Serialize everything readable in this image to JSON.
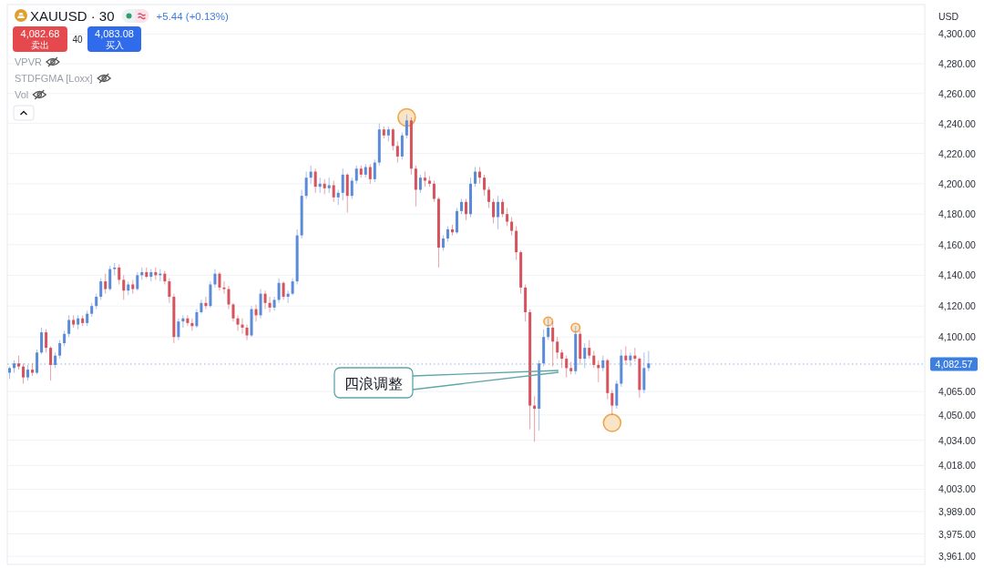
{
  "chart_data": {
    "type": "candlestick",
    "title": "XAUUSD · 30",
    "ylabel": "USD",
    "log": true,
    "grid": "y",
    "categories": [
      null,
      null,
      null,
      null,
      null,
      null,
      null,
      null,
      null,
      null,
      null,
      null,
      null,
      null,
      null,
      null,
      null,
      null,
      null,
      null,
      null,
      null,
      null,
      null,
      null,
      null,
      null,
      null,
      null,
      null,
      null,
      null,
      null,
      null,
      null,
      null,
      null,
      null,
      null,
      null,
      null,
      null,
      null,
      null,
      null,
      null,
      null,
      null,
      null,
      null,
      null,
      null,
      null,
      null,
      null,
      null,
      null,
      null,
      null,
      null,
      null,
      null,
      null,
      null,
      null,
      null,
      null,
      null,
      null,
      null,
      null,
      null,
      null,
      null,
      null,
      null,
      null,
      null,
      null,
      null,
      null,
      null,
      null,
      null,
      null,
      null,
      null,
      null,
      null,
      null,
      null,
      null,
      null,
      null,
      null,
      null,
      null,
      null,
      null,
      null,
      null,
      null,
      null,
      null,
      null,
      null,
      null,
      null,
      null,
      null,
      null,
      null,
      null,
      null,
      null,
      null,
      null,
      null,
      null,
      null,
      null,
      null,
      null,
      null,
      null,
      null,
      null,
      null,
      null,
      null,
      null,
      null,
      null,
      null,
      null,
      null,
      null,
      null,
      null,
      null,
      null,
      null,
      null,
      null,
      null,
      null,
      null,
      null,
      null,
      null,
      null,
      null,
      null,
      null,
      null,
      null,
      null,
      null,
      null,
      null,
      null,
      null,
      null,
      null,
      null,
      null,
      null,
      null,
      null,
      null,
      null,
      null,
      null,
      null,
      null,
      null,
      null,
      null,
      null,
      null,
      null,
      null,
      null,
      null,
      null,
      null,
      null,
      null,
      null,
      null,
      null,
      null,
      null,
      null,
      null,
      null,
      null,
      null,
      null,
      null,
      null
    ],
    "ohlc": [
      [
        4077,
        4081,
        4073,
        4080
      ],
      [
        4080,
        4085,
        4077,
        4083
      ],
      [
        4083,
        4088,
        4079,
        4081
      ],
      [
        4081,
        4083,
        4070,
        4074
      ],
      [
        4074,
        4082,
        4072,
        4079
      ],
      [
        4079,
        4083,
        4075,
        4077
      ],
      [
        4077,
        4092,
        4076,
        4090
      ],
      [
        4090,
        4106,
        4089,
        4103
      ],
      [
        4103,
        4105,
        4090,
        4093
      ],
      [
        4093,
        4094,
        4072,
        4082
      ],
      [
        4082,
        4090,
        4080,
        4088
      ],
      [
        4088,
        4098,
        4086,
        4096
      ],
      [
        4096,
        4104,
        4094,
        4102
      ],
      [
        4102,
        4114,
        4100,
        4111
      ],
      [
        4111,
        4114,
        4106,
        4108
      ],
      [
        4108,
        4114,
        4105,
        4112
      ],
      [
        4112,
        4114,
        4107,
        4109
      ],
      [
        4109,
        4117,
        4107,
        4115
      ],
      [
        4115,
        4122,
        4113,
        4120
      ],
      [
        4120,
        4128,
        4118,
        4126
      ],
      [
        4126,
        4138,
        4124,
        4136
      ],
      [
        4136,
        4141,
        4128,
        4131
      ],
      [
        4131,
        4146,
        4130,
        4144
      ],
      [
        4144,
        4148,
        4140,
        4145
      ],
      [
        4145,
        4147,
        4134,
        4137
      ],
      [
        4137,
        4140,
        4124,
        4130
      ],
      [
        4130,
        4136,
        4127,
        4134
      ],
      [
        4134,
        4137,
        4128,
        4131
      ],
      [
        4131,
        4142,
        4130,
        4140
      ],
      [
        4140,
        4145,
        4137,
        4142
      ],
      [
        4142,
        4145,
        4138,
        4139
      ],
      [
        4139,
        4144,
        4136,
        4142
      ],
      [
        4142,
        4145,
        4137,
        4140
      ],
      [
        4140,
        4144,
        4136,
        4141
      ],
      [
        4141,
        4143,
        4134,
        4136
      ],
      [
        4136,
        4138,
        4122,
        4126
      ],
      [
        4126,
        4128,
        4096,
        4100
      ],
      [
        4100,
        4112,
        4098,
        4110
      ],
      [
        4110,
        4114,
        4106,
        4112
      ],
      [
        4112,
        4114,
        4107,
        4109
      ],
      [
        4109,
        4112,
        4104,
        4107
      ],
      [
        4107,
        4118,
        4106,
        4116
      ],
      [
        4116,
        4124,
        4115,
        4122
      ],
      [
        4122,
        4126,
        4118,
        4120
      ],
      [
        4120,
        4136,
        4119,
        4134
      ],
      [
        4134,
        4144,
        4132,
        4141
      ],
      [
        4141,
        4142,
        4130,
        4132
      ],
      [
        4132,
        4136,
        4128,
        4131
      ],
      [
        4131,
        4133,
        4118,
        4121
      ],
      [
        4121,
        4122,
        4110,
        4112
      ],
      [
        4112,
        4114,
        4104,
        4108
      ],
      [
        4108,
        4112,
        4102,
        4106
      ],
      [
        4106,
        4108,
        4098,
        4101
      ],
      [
        4101,
        4120,
        4100,
        4118
      ],
      [
        4118,
        4121,
        4110,
        4114
      ],
      [
        4114,
        4131,
        4112,
        4128
      ],
      [
        4128,
        4130,
        4118,
        4122
      ],
      [
        4122,
        4126,
        4116,
        4119
      ],
      [
        4119,
        4126,
        4117,
        4124
      ],
      [
        4124,
        4138,
        4122,
        4135
      ],
      [
        4135,
        4136,
        4124,
        4126
      ],
      [
        4126,
        4130,
        4122,
        4128
      ],
      [
        4128,
        4138,
        4127,
        4136
      ],
      [
        4136,
        4170,
        4134,
        4166
      ],
      [
        4166,
        4196,
        4164,
        4192
      ],
      [
        4192,
        4208,
        4190,
        4204
      ],
      [
        4204,
        4212,
        4200,
        4208
      ],
      [
        4208,
        4210,
        4194,
        4198
      ],
      [
        4198,
        4204,
        4194,
        4200
      ],
      [
        4200,
        4203,
        4193,
        4197
      ],
      [
        4197,
        4204,
        4194,
        4199
      ],
      [
        4199,
        4202,
        4188,
        4191
      ],
      [
        4191,
        4196,
        4186,
        4194
      ],
      [
        4194,
        4210,
        4189,
        4206
      ],
      [
        4206,
        4207,
        4181,
        4192
      ],
      [
        4192,
        4204,
        4190,
        4202
      ],
      [
        4202,
        4212,
        4200,
        4210
      ],
      [
        4210,
        4212,
        4204,
        4206
      ],
      [
        4206,
        4213,
        4204,
        4211
      ],
      [
        4211,
        4213,
        4200,
        4203
      ],
      [
        4203,
        4216,
        4201,
        4214
      ],
      [
        4214,
        4240,
        4212,
        4236
      ],
      [
        4236,
        4238,
        4230,
        4232
      ],
      [
        4232,
        4238,
        4228,
        4236
      ],
      [
        4236,
        4237,
        4222,
        4225
      ],
      [
        4225,
        4228,
        4214,
        4218
      ],
      [
        4218,
        4234,
        4216,
        4232
      ],
      [
        4232,
        4246,
        4230,
        4242
      ],
      [
        4242,
        4244,
        4206,
        4210
      ],
      [
        4210,
        4212,
        4185,
        4196
      ],
      [
        4196,
        4206,
        4194,
        4204
      ],
      [
        4204,
        4208,
        4198,
        4202
      ],
      [
        4202,
        4205,
        4198,
        4200
      ],
      [
        4200,
        4202,
        4188,
        4190
      ],
      [
        4190,
        4191,
        4145,
        4158
      ],
      [
        4158,
        4166,
        4156,
        4164
      ],
      [
        4164,
        4172,
        4162,
        4170
      ],
      [
        4170,
        4173,
        4166,
        4168
      ],
      [
        4168,
        4184,
        4167,
        4182
      ],
      [
        4182,
        4190,
        4180,
        4188
      ],
      [
        4188,
        4190,
        4176,
        4180
      ],
      [
        4180,
        4204,
        4178,
        4200
      ],
      [
        4200,
        4211,
        4198,
        4208
      ],
      [
        4208,
        4211,
        4200,
        4204
      ],
      [
        4204,
        4206,
        4192,
        4196
      ],
      [
        4196,
        4198,
        4184,
        4188
      ],
      [
        4188,
        4190,
        4174,
        4178
      ],
      [
        4178,
        4192,
        4170,
        4188
      ],
      [
        4188,
        4190,
        4178,
        4180
      ],
      [
        4180,
        4184,
        4172,
        4175
      ],
      [
        4175,
        4178,
        4166,
        4169
      ],
      [
        4169,
        4172,
        4150,
        4155
      ],
      [
        4155,
        4156,
        4128,
        4132
      ],
      [
        4132,
        4134,
        4110,
        4116
      ],
      [
        4116,
        4118,
        4041,
        4056
      ],
      [
        4056,
        4062,
        4033,
        4054
      ],
      [
        4054,
        4085,
        4040,
        4083
      ],
      [
        4083,
        4105,
        4081,
        4100
      ],
      [
        4100,
        4112,
        4098,
        4106
      ],
      [
        4106,
        4110,
        4081,
        4097
      ],
      [
        4097,
        4100,
        4086,
        4090
      ],
      [
        4090,
        4092,
        4080,
        4086
      ],
      [
        4086,
        4088,
        4074,
        4080
      ],
      [
        4080,
        4084,
        4076,
        4078
      ],
      [
        4078,
        4107,
        4076,
        4102
      ],
      [
        4102,
        4104,
        4082,
        4086
      ],
      [
        4086,
        4096,
        4080,
        4093
      ],
      [
        4093,
        4098,
        4086,
        4088
      ],
      [
        4088,
        4091,
        4080,
        4082
      ],
      [
        4082,
        4085,
        4071,
        4080
      ],
      [
        4080,
        4088,
        4078,
        4085
      ],
      [
        4085,
        4086,
        4060,
        4064
      ],
      [
        4064,
        4066,
        4050,
        4056
      ],
      [
        4056,
        4072,
        4054,
        4070
      ],
      [
        4070,
        4092,
        4068,
        4088
      ],
      [
        4088,
        4094,
        4082,
        4085
      ],
      [
        4085,
        4090,
        4081,
        4088
      ],
      [
        4088,
        4093,
        4084,
        4086
      ],
      [
        4086,
        4087,
        4061,
        4066
      ],
      [
        4066,
        4090,
        4064,
        4080
      ],
      [
        4080,
        4091,
        4078,
        4083
      ],
      null,
      null,
      null,
      null,
      null,
      null,
      null,
      null,
      null,
      null,
      null,
      null,
      null,
      null,
      null,
      null,
      null,
      null,
      null,
      null,
      null,
      null,
      null,
      null,
      null,
      null,
      null,
      null,
      null,
      null,
      null,
      null,
      null,
      null,
      null,
      null,
      null,
      null,
      null,
      null,
      null,
      null,
      null,
      null,
      null,
      null,
      null,
      null,
      null,
      null,
      null,
      null,
      null,
      null,
      null,
      null,
      null,
      null,
      null,
      null
    ],
    "colors": [
      "#5b8bd8",
      "#5b8bd8",
      "#d6535d",
      "#d6535d",
      "#5b8bd8",
      "#d6535d",
      "#5b8bd8",
      "#5b8bd8",
      "#d6535d",
      "#d6535d",
      "#5b8bd8",
      "#5b8bd8",
      "#5b8bd8",
      "#5b8bd8",
      "#d6535d",
      "#5b8bd8",
      "#d6535d",
      "#5b8bd8",
      "#5b8bd8",
      "#5b8bd8",
      "#5b8bd8",
      "#d6535d",
      "#5b8bd8",
      "#5b8bd8",
      "#d6535d",
      "#d6535d",
      "#5b8bd8",
      "#d6535d",
      "#5b8bd8",
      "#5b8bd8",
      "#d6535d",
      "#5b8bd8",
      "#d6535d",
      "#5b8bd8",
      "#d6535d",
      "#d6535d",
      "#d6535d",
      "#5b8bd8",
      "#5b8bd8",
      "#d6535d",
      "#d6535d",
      "#5b8bd8",
      "#5b8bd8",
      "#d6535d",
      "#5b8bd8",
      "#5b8bd8",
      "#d6535d",
      "#d6535d",
      "#d6535d",
      "#d6535d",
      "#d6535d",
      "#d6535d",
      "#d6535d",
      "#5b8bd8",
      "#d6535d",
      "#5b8bd8",
      "#d6535d",
      "#d6535d",
      "#5b8bd8",
      "#5b8bd8",
      "#d6535d",
      "#5b8bd8",
      "#5b8bd8",
      "#5b8bd8",
      "#5b8bd8",
      "#5b8bd8",
      "#5b8bd8",
      "#d6535d",
      "#5b8bd8",
      "#d6535d",
      "#5b8bd8",
      "#d6535d",
      "#5b8bd8",
      "#5b8bd8",
      "#d6535d",
      "#5b8bd8",
      "#5b8bd8",
      "#d6535d",
      "#5b8bd8",
      "#d6535d",
      "#5b8bd8",
      "#5b8bd8",
      "#d6535d",
      "#5b8bd8",
      "#d6535d",
      "#d6535d",
      "#5b8bd8",
      "#5b8bd8",
      "#d6535d",
      "#d6535d",
      "#5b8bd8",
      "#d6535d",
      "#d6535d",
      "#d6535d",
      "#d6535d",
      "#5b8bd8",
      "#5b8bd8",
      "#d6535d",
      "#5b8bd8",
      "#5b8bd8",
      "#d6535d",
      "#5b8bd8",
      "#5b8bd8",
      "#d6535d",
      "#d6535d",
      "#d6535d",
      "#d6535d",
      "#5b8bd8",
      "#d6535d",
      "#d6535d",
      "#d6535d",
      "#d6535d",
      "#d6535d",
      "#d6535d",
      "#d6535d",
      "#d6535d",
      "#5b8bd8",
      "#5b8bd8",
      "#5b8bd8",
      "#d6535d",
      "#d6535d",
      "#d6535d",
      "#d6535d",
      "#d6535d",
      "#5b8bd8",
      "#d6535d",
      "#5b8bd8",
      "#d6535d",
      "#d6535d",
      "#d6535d",
      "#5b8bd8",
      "#d6535d",
      "#d6535d",
      "#5b8bd8",
      "#5b8bd8",
      "#d6535d",
      "#5b8bd8",
      "#d6535d",
      "#d6535d",
      "#5b8bd8",
      "#5b8bd8",
      null,
      null,
      null,
      null,
      null,
      null,
      null,
      null,
      null,
      null,
      null,
      null,
      null,
      null,
      null,
      null,
      null,
      null,
      null,
      null,
      null,
      null,
      null,
      null,
      null,
      null,
      null,
      null,
      null,
      null,
      null,
      null,
      null,
      null,
      null,
      null,
      null,
      null,
      null,
      null,
      null,
      null,
      null,
      null,
      null,
      null,
      null,
      null,
      null,
      null,
      null,
      null,
      null,
      null,
      null,
      null,
      null,
      null,
      null,
      null
    ],
    "series": [
      {
        "type": "bubble",
        "color": "#f0a548",
        "values": [
          null,
          null,
          null,
          null,
          null,
          null,
          null,
          null,
          null,
          null,
          null,
          null,
          null,
          null,
          null,
          null,
          null,
          null,
          null,
          null,
          null,
          null,
          null,
          null,
          null,
          null,
          null,
          null,
          null,
          null,
          null,
          null,
          null,
          null,
          null,
          null,
          null,
          null,
          null,
          null,
          null,
          null,
          null,
          null,
          null,
          null,
          null,
          null,
          null,
          null,
          null,
          null,
          null,
          null,
          null,
          null,
          null,
          null,
          null,
          null,
          null,
          null,
          null,
          null,
          null,
          null,
          null,
          null,
          null,
          null,
          null,
          null,
          null,
          null,
          null,
          null,
          null,
          null,
          null,
          null,
          null,
          null,
          null,
          null,
          null,
          null,
          null,
          4244,
          null,
          null,
          null,
          null,
          null,
          null,
          null,
          null,
          null,
          null,
          null,
          null,
          null,
          null,
          null,
          null,
          null,
          null,
          null,
          null,
          null,
          null,
          null,
          null,
          null,
          null,
          null,
          null,
          null,
          null,
          4110,
          null,
          null,
          null,
          null,
          null,
          4106,
          null,
          null,
          null,
          null,
          null,
          null,
          null,
          4045,
          null,
          null,
          null,
          null,
          null,
          null,
          null,
          null,
          null,
          null,
          null,
          null,
          null,
          null,
          null,
          null,
          null,
          null,
          null,
          null,
          null,
          null,
          null,
          null,
          null,
          null,
          null,
          null,
          null,
          null,
          null,
          null,
          null,
          null,
          null,
          null,
          null,
          null,
          null,
          null,
          null,
          null,
          null,
          null,
          null,
          null,
          null,
          null,
          null,
          null,
          null,
          null,
          null,
          null,
          null,
          null,
          null,
          null,
          null,
          null,
          null,
          null,
          null,
          null,
          null,
          null,
          null,
          null
        ],
        "sizes": [
          null,
          null,
          null,
          null,
          null,
          null,
          null,
          null,
          null,
          null,
          null,
          null,
          null,
          null,
          null,
          null,
          null,
          null,
          null,
          null,
          null,
          null,
          null,
          null,
          null,
          null,
          null,
          null,
          null,
          null,
          null,
          null,
          null,
          null,
          null,
          null,
          null,
          null,
          null,
          null,
          null,
          null,
          null,
          null,
          null,
          null,
          null,
          null,
          null,
          null,
          null,
          null,
          null,
          null,
          null,
          null,
          null,
          null,
          null,
          null,
          null,
          null,
          null,
          null,
          null,
          null,
          null,
          null,
          null,
          null,
          null,
          null,
          null,
          null,
          null,
          null,
          null,
          null,
          null,
          null,
          null,
          null,
          null,
          null,
          null,
          null,
          null,
          1,
          null,
          null,
          null,
          null,
          null,
          null,
          null,
          null,
          null,
          null,
          null,
          null,
          null,
          null,
          null,
          null,
          null,
          null,
          null,
          null,
          null,
          null,
          null,
          null,
          null,
          null,
          null,
          null,
          null,
          null,
          0.25,
          null,
          null,
          null,
          null,
          null,
          0.25,
          null,
          null,
          null,
          null,
          null,
          null,
          null,
          1,
          null,
          null,
          null,
          null,
          null,
          null,
          null,
          null,
          null,
          null,
          null,
          null,
          null,
          null,
          null,
          null,
          null,
          null,
          null,
          null,
          null,
          null,
          null,
          null,
          null,
          null,
          null,
          null,
          null,
          null,
          null,
          null,
          null,
          null,
          null,
          null,
          null,
          null,
          null,
          null,
          null,
          null,
          null,
          null,
          null,
          null,
          null,
          null,
          null,
          null,
          null,
          null,
          null,
          null,
          null,
          null,
          null,
          null,
          null,
          null,
          null,
          null,
          null,
          null,
          null,
          null,
          null,
          null
        ]
      }
    ],
    "ylim": [
      3956,
      4320
    ],
    "yticks": [
      {
        "value": 4300,
        "label": "4,300.00"
      },
      {
        "value": 4280,
        "label": "4,280.00"
      },
      {
        "value": 4260,
        "label": "4,260.00"
      },
      {
        "value": 4240,
        "label": "4,240.00"
      },
      {
        "value": 4220,
        "label": "4,220.00"
      },
      {
        "value": 4200,
        "label": "4,200.00"
      },
      {
        "value": 4180,
        "label": "4,180.00"
      },
      {
        "value": 4160,
        "label": "4,160.00"
      },
      {
        "value": 4140,
        "label": "4,140.00"
      },
      {
        "value": 4120,
        "label": "4,120.00"
      },
      {
        "value": 4100,
        "label": "4,100.00"
      },
      {
        "value": 4065,
        "label": "4,065.00"
      },
      {
        "value": 4050,
        "label": "4,050.00"
      },
      {
        "value": 4034,
        "label": "4,034.00"
      },
      {
        "value": 4018,
        "label": "4,018.00"
      },
      {
        "value": 4003,
        "label": "4,003.00"
      },
      {
        "value": 3989,
        "label": "3,989.00"
      },
      {
        "value": 3975,
        "label": "3,975.00"
      },
      {
        "value": 3961,
        "label": "3,961.00"
      }
    ],
    "ref_lines": [
      {
        "axis": "y",
        "value": 4082.57,
        "label": "4,082.57",
        "color": "#3d7fe0",
        "line_style": "dotted"
      }
    ],
    "annotations": [
      "+5.44 (+0.13%)",
      "4,082.68",
      "卖出",
      "40",
      "4,083.08",
      "买入",
      "VPVR",
      "STDFGMA [Loxx]",
      "Vol",
      "四浪调整"
    ]
  }
}
